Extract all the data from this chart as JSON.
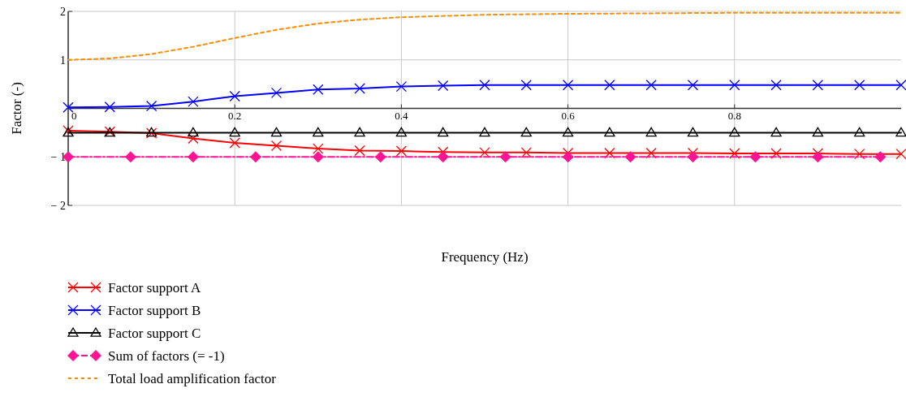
{
  "chart_data": {
    "type": "line",
    "xlabel": "Frequency (Hz)",
    "ylabel": "Factor (-)",
    "xlim": [
      0,
      1
    ],
    "ylim": [
      -2,
      2
    ],
    "xticks": [
      0,
      0.2,
      0.4,
      0.6,
      0.8
    ],
    "yticks": [
      -2,
      -1,
      {
        "value": 0,
        "label": null
      },
      1,
      2
    ],
    "grid": true,
    "legend": "bottom left",
    "series": [
      {
        "name": "Factor support A",
        "color": "#ff0000",
        "marker": "cross",
        "line_style": "solid",
        "x": [
          0,
          0.05,
          0.1,
          0.15,
          0.2,
          0.25,
          0.3,
          0.35,
          0.4,
          0.45,
          0.5,
          0.55,
          0.6,
          0.65,
          0.7,
          0.75,
          0.8,
          0.85,
          0.9,
          0.95,
          1
        ],
        "values": [
          -0.46,
          -0.48,
          -0.51,
          -0.62,
          -0.71,
          -0.77,
          -0.83,
          -0.87,
          -0.88,
          -0.9,
          -0.91,
          -0.91,
          -0.92,
          -0.92,
          -0.92,
          -0.92,
          -0.93,
          -0.93,
          -0.93,
          -0.94,
          -0.94
        ]
      },
      {
        "name": "Factor support B",
        "color": "#0000ff",
        "marker": "cross",
        "line_style": "solid",
        "x": [
          0,
          0.05,
          0.1,
          0.15,
          0.2,
          0.25,
          0.3,
          0.35,
          0.4,
          0.45,
          0.5,
          0.55,
          0.6,
          0.65,
          0.7,
          0.75,
          0.8,
          0.85,
          0.9,
          0.95,
          1
        ],
        "values": [
          0.02,
          0.03,
          0.05,
          0.14,
          0.25,
          0.32,
          0.39,
          0.41,
          0.45,
          0.47,
          0.48,
          0.48,
          0.48,
          0.48,
          0.48,
          0.48,
          0.48,
          0.48,
          0.48,
          0.48,
          0.48
        ]
      },
      {
        "name": "Factor support C",
        "color": "#000000",
        "marker": "triangle",
        "line_style": "solid",
        "x": [
          0,
          0.05,
          0.1,
          0.15,
          0.2,
          0.25,
          0.3,
          0.35,
          0.4,
          0.45,
          0.5,
          0.55,
          0.6,
          0.65,
          0.7,
          0.75,
          0.8,
          0.85,
          0.9,
          0.95,
          1
        ],
        "values": [
          -0.5,
          -0.5,
          -0.5,
          -0.5,
          -0.5,
          -0.5,
          -0.5,
          -0.5,
          -0.5,
          -0.5,
          -0.5,
          -0.5,
          -0.5,
          -0.5,
          -0.5,
          -0.5,
          -0.5,
          -0.5,
          -0.5,
          -0.5,
          -0.5
        ]
      },
      {
        "name": "Sum of factors (= -1)",
        "color": "#ff1493",
        "marker": "diamond",
        "line_style": "dashed",
        "x": [
          0,
          0.075,
          0.15,
          0.225,
          0.3,
          0.375,
          0.45,
          0.525,
          0.6,
          0.675,
          0.75,
          0.825,
          0.9,
          0.975
        ],
        "values": [
          -1,
          -1,
          -1,
          -1,
          -1,
          -1,
          -1,
          -1,
          -1,
          -1,
          -1,
          -1,
          -1,
          -1
        ]
      },
      {
        "name": "Total load amplification factor",
        "color": "#ff8c00",
        "marker": "none",
        "line_style": "dotted",
        "x": [
          0,
          0.05,
          0.1,
          0.15,
          0.2,
          0.25,
          0.3,
          0.35,
          0.4,
          0.5,
          0.6,
          0.7,
          0.8,
          0.9,
          1
        ],
        "values": [
          1,
          1.03,
          1.12,
          1.27,
          1.45,
          1.62,
          1.75,
          1.83,
          1.88,
          1.93,
          1.95,
          1.96,
          1.97,
          1.97,
          1.97
        ]
      }
    ]
  }
}
